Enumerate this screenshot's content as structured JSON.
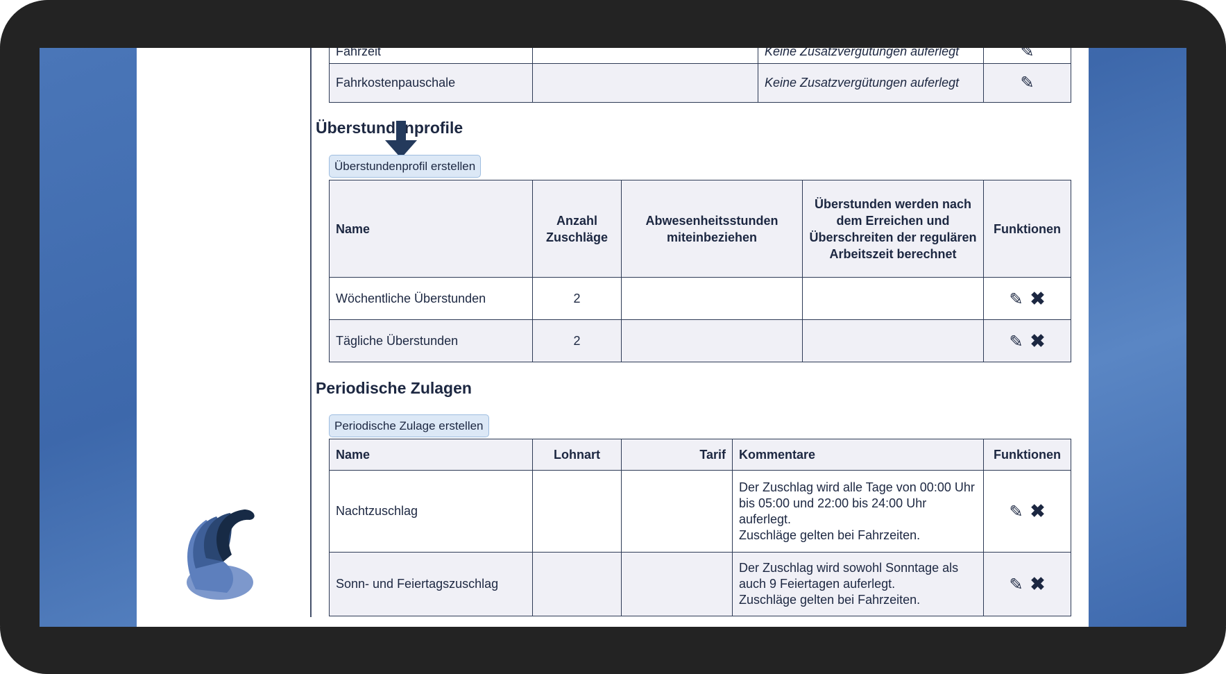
{
  "fahrzeiten_table": {
    "rows": [
      {
        "name": "Fahrzeit",
        "comment": "Keine Zusatzvergütungen auferlegt"
      },
      {
        "name": "Fahrkostenpauschale",
        "comment": "Keine Zusatzvergütungen auferlegt"
      }
    ]
  },
  "overtime": {
    "heading": "Überstundenprofile",
    "create_button": "Überstundenprofil erstellen",
    "headers": [
      "Name",
      "Anzahl Zuschläge",
      "Abwesenheitsstunden miteinbeziehen",
      "Überstunden werden nach dem Erreichen und Überschreiten der regulären Arbeitszeit berechnet",
      "Funktionen"
    ],
    "rows": [
      {
        "name": "Wöchentliche Überstunden",
        "count": "2",
        "absence": "",
        "after_regular": ""
      },
      {
        "name": "Tägliche Überstunden",
        "count": "2",
        "absence": "",
        "after_regular": ""
      }
    ]
  },
  "periodic": {
    "heading": "Periodische Zulagen",
    "create_button": "Periodische Zulage erstellen",
    "headers": [
      "Name",
      "Lohnart",
      "Tarif",
      "Kommentare",
      "Funktionen"
    ],
    "rows": [
      {
        "name": "Nachtzuschlag",
        "lohnart": "",
        "tarif": "",
        "comment": [
          "Der Zuschlag wird alle Tage von 00:00 Uhr bis 05:00 und 22:00 bis 24:00 Uhr auferlegt.",
          "Zuschläge gelten bei Fahrzeiten."
        ]
      },
      {
        "name": "Sonn- und Feiertagszuschlag",
        "lohnart": "",
        "tarif": "",
        "comment": [
          "Der Zuschlag wird sowohl Sonntage als auch 9 Feiertagen auferlegt.",
          "Zuschläge gelten bei Fahrzeiten."
        ]
      }
    ]
  },
  "icons": {
    "edit": "pencil-icon",
    "delete": "x-icon",
    "pointer": "arrow-down-icon"
  },
  "colors": {
    "text": "#1c2741",
    "row_alt": "#f0f0f6",
    "button": "#dce8f6",
    "desktop": "#4a76b8"
  }
}
